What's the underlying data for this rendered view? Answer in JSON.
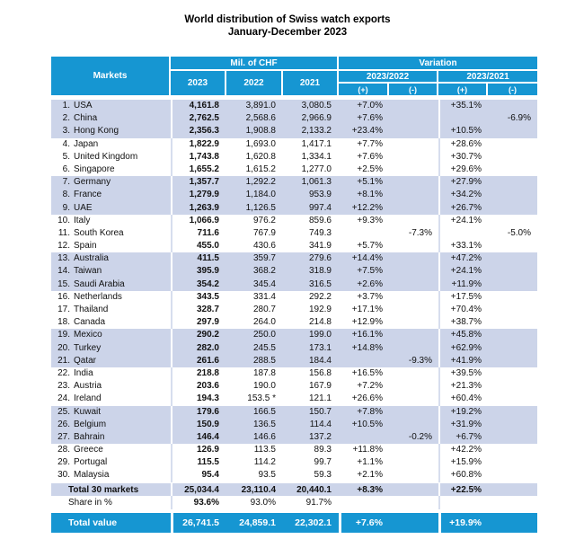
{
  "title": {
    "line1": "World distribution of Swiss watch exports",
    "line2": "January-December 2023"
  },
  "colors": {
    "header_blue": "#1696d2",
    "band_blue": "#ccd4e9",
    "separator_faint": "#d7deee"
  },
  "header": {
    "markets": "Markets",
    "chf_group": "Mil. of CHF",
    "variation_group": "Variation",
    "year_2023": "2023",
    "year_2022": "2022",
    "year_2021": "2021",
    "var_2023_2022": "2023/2022",
    "var_2023_2021": "2023/2021",
    "plus": "(+)",
    "minus": "(-)"
  },
  "rows": [
    {
      "rank": "1.",
      "market": "USA",
      "y2023": "4,161.8",
      "y2022": "3,891.0",
      "y2021": "3,080.5",
      "v22p": "+7.0%",
      "v22m": "",
      "v21p": "+35.1%",
      "v21m": ""
    },
    {
      "rank": "2.",
      "market": "China",
      "y2023": "2,762.5",
      "y2022": "2,568.6",
      "y2021": "2,966.9",
      "v22p": "+7.6%",
      "v22m": "",
      "v21p": "",
      "v21m": "-6.9%"
    },
    {
      "rank": "3.",
      "market": "Hong Kong",
      "y2023": "2,356.3",
      "y2022": "1,908.8",
      "y2021": "2,133.2",
      "v22p": "+23.4%",
      "v22m": "",
      "v21p": "+10.5%",
      "v21m": ""
    },
    {
      "rank": "4.",
      "market": "Japan",
      "y2023": "1,822.9",
      "y2022": "1,693.0",
      "y2021": "1,417.1",
      "v22p": "+7.7%",
      "v22m": "",
      "v21p": "+28.6%",
      "v21m": ""
    },
    {
      "rank": "5.",
      "market": "United Kingdom",
      "y2023": "1,743.8",
      "y2022": "1,620.8",
      "y2021": "1,334.1",
      "v22p": "+7.6%",
      "v22m": "",
      "v21p": "+30.7%",
      "v21m": ""
    },
    {
      "rank": "6.",
      "market": "Singapore",
      "y2023": "1,655.2",
      "y2022": "1,615.2",
      "y2021": "1,277.0",
      "v22p": "+2.5%",
      "v22m": "",
      "v21p": "+29.6%",
      "v21m": ""
    },
    {
      "rank": "7.",
      "market": "Germany",
      "y2023": "1,357.7",
      "y2022": "1,292.2",
      "y2021": "1,061.3",
      "v22p": "+5.1%",
      "v22m": "",
      "v21p": "+27.9%",
      "v21m": ""
    },
    {
      "rank": "8.",
      "market": "France",
      "y2023": "1,279.9",
      "y2022": "1,184.0",
      "y2021": "953.9",
      "v22p": "+8.1%",
      "v22m": "",
      "v21p": "+34.2%",
      "v21m": ""
    },
    {
      "rank": "9.",
      "market": "UAE",
      "y2023": "1,263.9",
      "y2022": "1,126.5",
      "y2021": "997.4",
      "v22p": "+12.2%",
      "v22m": "",
      "v21p": "+26.7%",
      "v21m": ""
    },
    {
      "rank": "10.",
      "market": "Italy",
      "y2023": "1,066.9",
      "y2022": "976.2",
      "y2021": "859.6",
      "v22p": "+9.3%",
      "v22m": "",
      "v21p": "+24.1%",
      "v21m": ""
    },
    {
      "rank": "11.",
      "market": "South Korea",
      "y2023": "711.6",
      "y2022": "767.9",
      "y2021": "749.3",
      "v22p": "",
      "v22m": "-7.3%",
      "v21p": "",
      "v21m": "-5.0%"
    },
    {
      "rank": "12.",
      "market": "Spain",
      "y2023": "455.0",
      "y2022": "430.6",
      "y2021": "341.9",
      "v22p": "+5.7%",
      "v22m": "",
      "v21p": "+33.1%",
      "v21m": ""
    },
    {
      "rank": "13.",
      "market": "Australia",
      "y2023": "411.5",
      "y2022": "359.7",
      "y2021": "279.6",
      "v22p": "+14.4%",
      "v22m": "",
      "v21p": "+47.2%",
      "v21m": ""
    },
    {
      "rank": "14.",
      "market": "Taiwan",
      "y2023": "395.9",
      "y2022": "368.2",
      "y2021": "318.9",
      "v22p": "+7.5%",
      "v22m": "",
      "v21p": "+24.1%",
      "v21m": ""
    },
    {
      "rank": "15.",
      "market": "Saudi Arabia",
      "y2023": "354.2",
      "y2022": "345.4",
      "y2021": "316.5",
      "v22p": "+2.6%",
      "v22m": "",
      "v21p": "+11.9%",
      "v21m": ""
    },
    {
      "rank": "16.",
      "market": "Netherlands",
      "y2023": "343.5",
      "y2022": "331.4",
      "y2021": "292.2",
      "v22p": "+3.7%",
      "v22m": "",
      "v21p": "+17.5%",
      "v21m": ""
    },
    {
      "rank": "17.",
      "market": "Thailand",
      "y2023": "328.7",
      "y2022": "280.7",
      "y2021": "192.9",
      "v22p": "+17.1%",
      "v22m": "",
      "v21p": "+70.4%",
      "v21m": ""
    },
    {
      "rank": "18.",
      "market": "Canada",
      "y2023": "297.9",
      "y2022": "264.0",
      "y2021": "214.8",
      "v22p": "+12.9%",
      "v22m": "",
      "v21p": "+38.7%",
      "v21m": ""
    },
    {
      "rank": "19.",
      "market": "Mexico",
      "y2023": "290.2",
      "y2022": "250.0",
      "y2021": "199.0",
      "v22p": "+16.1%",
      "v22m": "",
      "v21p": "+45.8%",
      "v21m": ""
    },
    {
      "rank": "20.",
      "market": "Turkey",
      "y2023": "282.0",
      "y2022": "245.5",
      "y2021": "173.1",
      "v22p": "+14.8%",
      "v22m": "",
      "v21p": "+62.9%",
      "v21m": ""
    },
    {
      "rank": "21.",
      "market": "Qatar",
      "y2023": "261.6",
      "y2022": "288.5",
      "y2021": "184.4",
      "v22p": "",
      "v22m": "-9.3%",
      "v21p": "+41.9%",
      "v21m": ""
    },
    {
      "rank": "22.",
      "market": "India",
      "y2023": "218.8",
      "y2022": "187.8",
      "y2021": "156.8",
      "v22p": "+16.5%",
      "v22m": "",
      "v21p": "+39.5%",
      "v21m": ""
    },
    {
      "rank": "23.",
      "market": "Austria",
      "y2023": "203.6",
      "y2022": "190.0",
      "y2021": "167.9",
      "v22p": "+7.2%",
      "v22m": "",
      "v21p": "+21.3%",
      "v21m": ""
    },
    {
      "rank": "24.",
      "market": "Ireland",
      "y2023": "194.3",
      "y2022": "153.5 *",
      "y2021": "121.1",
      "v22p": "+26.6%",
      "v22m": "",
      "v21p": "+60.4%",
      "v21m": ""
    },
    {
      "rank": "25.",
      "market": "Kuwait",
      "y2023": "179.6",
      "y2022": "166.5",
      "y2021": "150.7",
      "v22p": "+7.8%",
      "v22m": "",
      "v21p": "+19.2%",
      "v21m": ""
    },
    {
      "rank": "26.",
      "market": "Belgium",
      "y2023": "150.9",
      "y2022": "136.5",
      "y2021": "114.4",
      "v22p": "+10.5%",
      "v22m": "",
      "v21p": "+31.9%",
      "v21m": ""
    },
    {
      "rank": "27.",
      "market": "Bahrain",
      "y2023": "146.4",
      "y2022": "146.6",
      "y2021": "137.2",
      "v22p": "",
      "v22m": "-0.2%",
      "v21p": "+6.7%",
      "v21m": ""
    },
    {
      "rank": "28.",
      "market": "Greece",
      "y2023": "126.9",
      "y2022": "113.5",
      "y2021": "89.3",
      "v22p": "+11.8%",
      "v22m": "",
      "v21p": "+42.2%",
      "v21m": ""
    },
    {
      "rank": "29.",
      "market": "Portugal",
      "y2023": "115.5",
      "y2022": "114.2",
      "y2021": "99.7",
      "v22p": "+1.1%",
      "v22m": "",
      "v21p": "+15.9%",
      "v21m": ""
    },
    {
      "rank": "30.",
      "market": "Malaysia",
      "y2023": "95.4",
      "y2022": "93.5",
      "y2021": "59.3",
      "v22p": "+2.1%",
      "v22m": "",
      "v21p": "+60.8%",
      "v21m": ""
    }
  ],
  "footer": {
    "total": {
      "label": "Total 30 markets",
      "y2023": "25,034.4",
      "y2022": "23,110.4",
      "y2021": "20,440.1",
      "v22p": "+8.3%",
      "v22m": "",
      "v21p": "+22.5%",
      "v21m": ""
    },
    "share": {
      "label": "Share in %",
      "y2023": "93.6%",
      "y2022": "93.0%",
      "y2021": "91.7%",
      "v22p": "",
      "v22m": "",
      "v21p": "",
      "v21m": ""
    },
    "grand": {
      "label": "Total value",
      "y2023": "26,741.5",
      "y2022": "24,859.1",
      "y2021": "22,302.1",
      "v22p": "+7.6%",
      "v22m": "",
      "v21p": "+19.9%",
      "v21m": ""
    }
  }
}
